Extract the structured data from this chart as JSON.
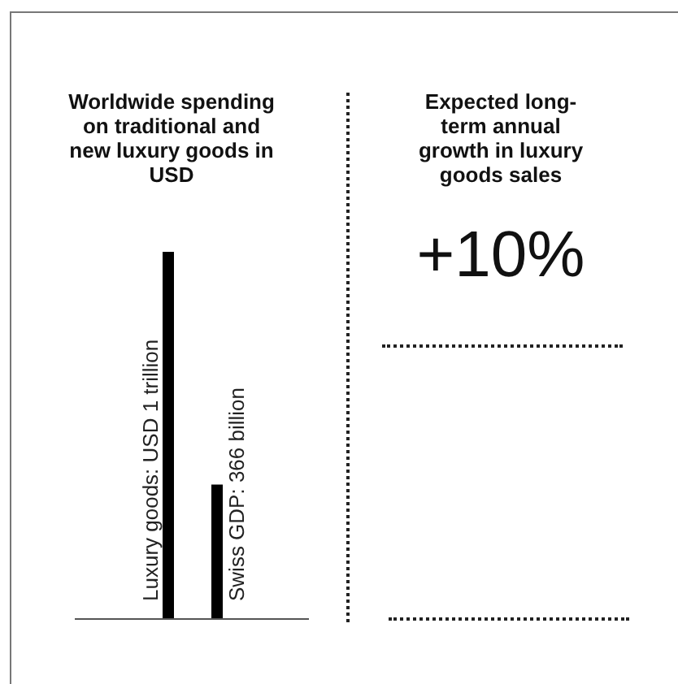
{
  "chart_data": [
    {
      "type": "bar",
      "title": "Worldwide spending on traditional and new luxury goods in USD",
      "categories": [
        null,
        null
      ],
      "values": [
        1000,
        366
      ],
      "value_labels": [
        "Luxury goods: USD 1 trillion",
        "Swiss GDP: 366 billion"
      ],
      "color": "#000000"
    },
    {
      "type": "other",
      "title": "Expected long-term annual growth in luxury goods sales",
      "annotations": [
        "+10%"
      ]
    }
  ]
}
